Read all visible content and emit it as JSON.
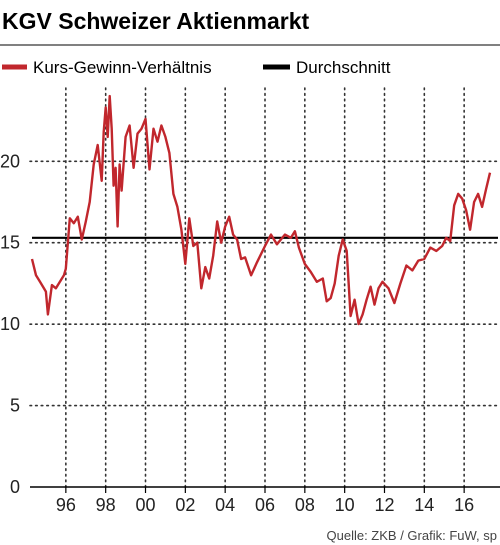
{
  "chart_data": {
    "type": "line",
    "title": "KGV Schweizer Aktienmarkt",
    "legend": [
      {
        "name": "Kurs-Gewinn-Verhältnis",
        "color": "#c1272d"
      },
      {
        "name": "Durchschnitt",
        "color": "#000000"
      }
    ],
    "x_ticks": [
      "96",
      "98",
      "00",
      "02",
      "04",
      "06",
      "08",
      "10",
      "12",
      "14",
      "16"
    ],
    "x_tick_values": [
      1996,
      1998,
      2000,
      2002,
      2004,
      2006,
      2008,
      2010,
      2012,
      2014,
      2016
    ],
    "y_ticks": [
      "0",
      "5",
      "10",
      "15",
      "20"
    ],
    "y_tick_values": [
      0,
      5,
      10,
      15,
      20
    ],
    "xlim": [
      1994.2,
      2017.8
    ],
    "ylim": [
      0,
      24.5
    ],
    "grid": {
      "x": "dotted",
      "y": "dotted"
    },
    "source": "Quelle: ZKB / Grafik: FuW, sp",
    "series": [
      {
        "name": "Kurs-Gewinn-Verhältnis",
        "color": "#c1272d",
        "x": [
          1994.3,
          1994.5,
          1994.7,
          1994.9,
          1995.0,
          1995.1,
          1995.3,
          1995.5,
          1995.7,
          1995.9,
          1996.0,
          1996.2,
          1996.4,
          1996.6,
          1996.8,
          1997.0,
          1997.2,
          1997.4,
          1997.6,
          1997.8,
          1997.9,
          1998.0,
          1998.1,
          1998.2,
          1998.3,
          1998.4,
          1998.5,
          1998.6,
          1998.7,
          1998.8,
          1999.0,
          1999.2,
          1999.4,
          1999.6,
          1999.8,
          2000.0,
          2000.2,
          2000.4,
          2000.6,
          2000.8,
          2001.0,
          2001.2,
          2001.4,
          2001.6,
          2001.8,
          2002.0,
          2002.2,
          2002.4,
          2002.6,
          2002.8,
          2003.0,
          2003.2,
          2003.4,
          2003.6,
          2003.8,
          2004.0,
          2004.2,
          2004.4,
          2004.6,
          2004.8,
          2005.0,
          2005.3,
          2005.6,
          2006.0,
          2006.3,
          2006.6,
          2007.0,
          2007.3,
          2007.5,
          2007.7,
          2008.0,
          2008.3,
          2008.6,
          2008.9,
          2009.1,
          2009.3,
          2009.5,
          2009.7,
          2009.9,
          2010.1,
          2010.3,
          2010.5,
          2010.7,
          2010.9,
          2011.1,
          2011.3,
          2011.5,
          2011.7,
          2011.9,
          2012.2,
          2012.5,
          2012.8,
          2013.1,
          2013.4,
          2013.7,
          2014.0,
          2014.3,
          2014.6,
          2014.9,
          2015.1,
          2015.3,
          2015.5,
          2015.7,
          2015.9,
          2016.1,
          2016.3,
          2016.5,
          2016.7,
          2016.9,
          2017.1,
          2017.3
        ],
        "y": [
          14.0,
          13.0,
          12.6,
          12.2,
          12.0,
          10.6,
          12.4,
          12.2,
          12.6,
          13.0,
          13.4,
          16.5,
          16.2,
          16.6,
          15.2,
          16.3,
          17.5,
          19.8,
          21.0,
          18.8,
          21.8,
          23.3,
          21.5,
          24.0,
          22.0,
          18.5,
          19.6,
          16.0,
          19.8,
          18.2,
          21.5,
          22.2,
          19.6,
          21.7,
          22.0,
          22.6,
          19.5,
          22.0,
          21.2,
          22.2,
          21.5,
          20.5,
          18.0,
          17.2,
          15.8,
          13.7,
          16.5,
          14.8,
          15.0,
          12.2,
          13.5,
          12.8,
          14.2,
          16.3,
          15.0,
          16.0,
          16.6,
          15.5,
          15.2,
          14.0,
          14.1,
          13.0,
          13.8,
          14.8,
          15.5,
          14.9,
          15.5,
          15.3,
          15.7,
          14.7,
          13.7,
          13.2,
          12.6,
          12.8,
          11.4,
          11.6,
          12.5,
          14.2,
          15.2,
          14.5,
          10.5,
          11.5,
          10.0,
          10.6,
          11.5,
          12.3,
          11.2,
          12.2,
          12.6,
          12.2,
          11.3,
          12.5,
          13.6,
          13.3,
          13.9,
          14.0,
          14.7,
          14.5,
          14.8,
          15.3,
          15.1,
          17.3,
          18.0,
          17.7,
          17.0,
          15.8,
          17.5,
          18.0,
          17.2,
          18.3,
          19.3
        ]
      },
      {
        "name": "Durchschnitt",
        "color": "#000000",
        "x": [
          1994.3,
          2017.7
        ],
        "y": [
          15.3,
          15.3
        ]
      }
    ]
  }
}
